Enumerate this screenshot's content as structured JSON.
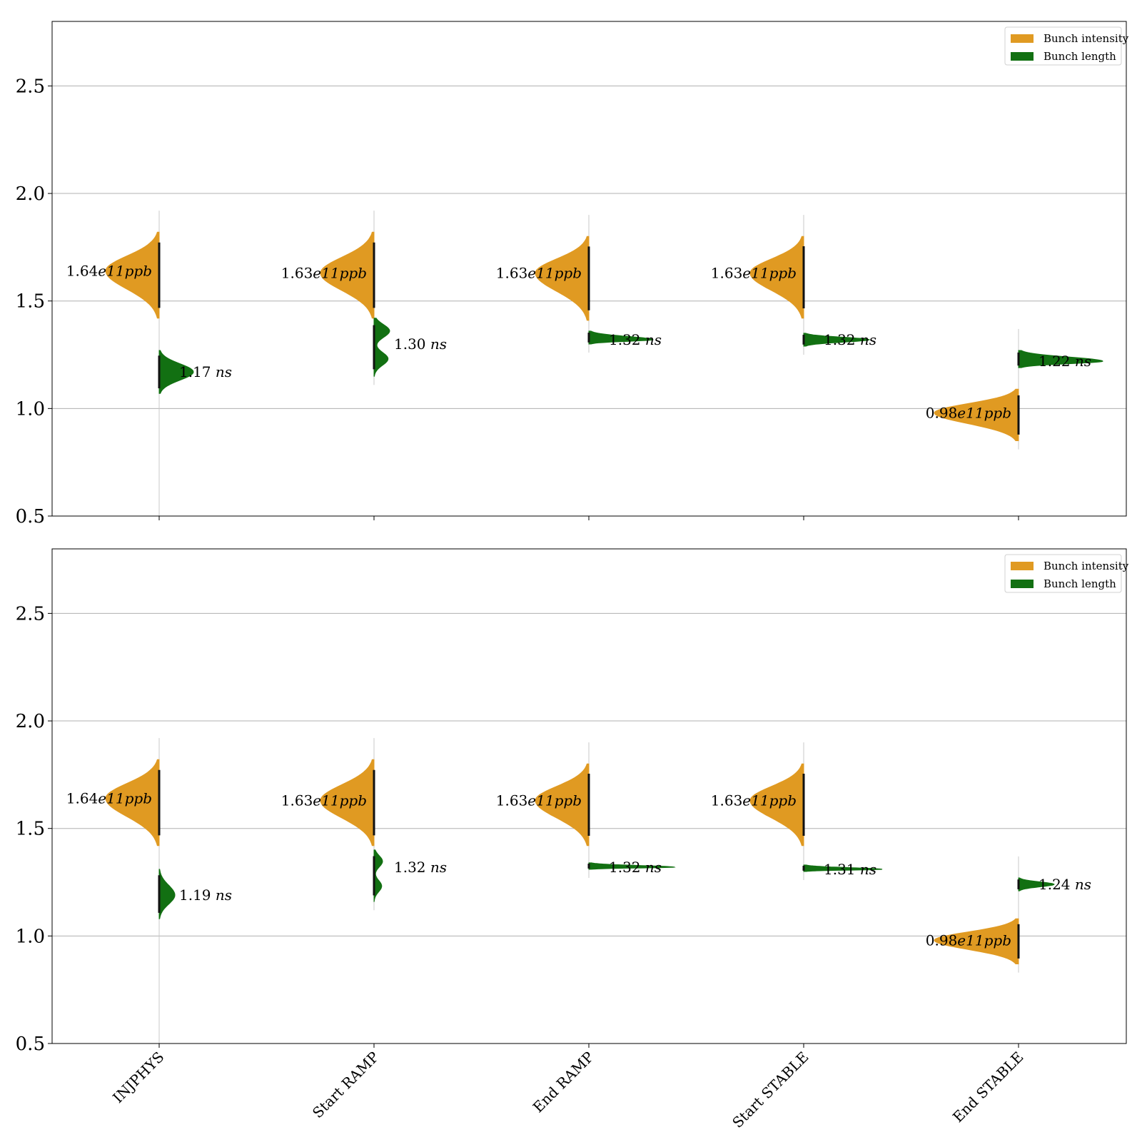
{
  "chart_data": [
    {
      "type": "violin",
      "ylim": [
        0.5,
        2.8
      ],
      "yticks": [
        "0.5",
        "1.0",
        "1.5",
        "2.0",
        "2.5"
      ],
      "grid": true,
      "legend_position": "top-right",
      "categories": [
        "INJPHYS",
        "Start RAMP",
        "End RAMP",
        "Start STABLE",
        "End STABLE"
      ],
      "series": [
        {
          "name": "Bunch intensity",
          "color": "#e09a22",
          "side": "left",
          "centers": [
            1.64,
            1.63,
            1.63,
            1.63,
            0.98
          ],
          "ranges": [
            [
              1.42,
              1.82
            ],
            [
              1.42,
              1.82
            ],
            [
              1.41,
              1.8
            ],
            [
              1.42,
              1.8
            ],
            [
              0.85,
              1.09
            ]
          ],
          "labels": [
            "1.64",
            "1.63",
            "1.63",
            "1.63",
            "0.98"
          ],
          "label_suffix": "e11ppb"
        },
        {
          "name": "Bunch length",
          "color": "#127012",
          "side": "right",
          "centers": [
            1.17,
            1.3,
            1.32,
            1.32,
            1.22
          ],
          "ranges": [
            [
              1.07,
              1.27
            ],
            [
              1.15,
              1.42
            ],
            [
              1.3,
              1.36
            ],
            [
              1.29,
              1.35
            ],
            [
              1.19,
              1.27
            ]
          ],
          "labels": [
            "1.17",
            "1.30",
            "1.32",
            "1.32",
            "1.22"
          ],
          "label_suffix": "ns"
        }
      ]
    },
    {
      "type": "violin",
      "ylim": [
        0.5,
        2.8
      ],
      "yticks": [
        "0.5",
        "1.0",
        "1.5",
        "2.0",
        "2.5"
      ],
      "grid": true,
      "legend_position": "top-right",
      "categories": [
        "INJPHYS",
        "Start RAMP",
        "End RAMP",
        "Start STABLE",
        "End STABLE"
      ],
      "series": [
        {
          "name": "Bunch intensity",
          "color": "#e09a22",
          "side": "left",
          "centers": [
            1.64,
            1.63,
            1.63,
            1.63,
            0.98
          ],
          "ranges": [
            [
              1.42,
              1.82
            ],
            [
              1.42,
              1.82
            ],
            [
              1.42,
              1.8
            ],
            [
              1.42,
              1.8
            ],
            [
              0.87,
              1.08
            ]
          ],
          "labels": [
            "1.64",
            "1.63",
            "1.63",
            "1.63",
            "0.98"
          ],
          "label_suffix": "e11ppb"
        },
        {
          "name": "Bunch length",
          "color": "#127012",
          "side": "right",
          "centers": [
            1.19,
            1.32,
            1.32,
            1.31,
            1.24
          ],
          "ranges": [
            [
              1.08,
              1.31
            ],
            [
              1.16,
              1.4
            ],
            [
              1.31,
              1.34
            ],
            [
              1.3,
              1.33
            ],
            [
              1.21,
              1.27
            ]
          ],
          "labels": [
            "1.19",
            "1.32",
            "1.32",
            "1.31",
            "1.24"
          ],
          "label_suffix": "ns"
        }
      ]
    }
  ]
}
